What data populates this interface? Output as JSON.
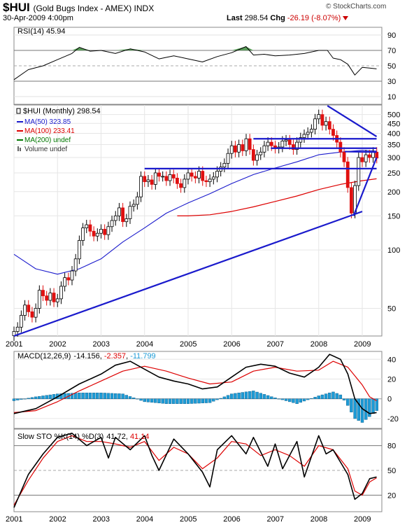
{
  "header": {
    "symbol": "$HUI",
    "name": "(Gold Bugs Index - AMEX) INDX",
    "datetime": "30-Apr-2009 4:00pm",
    "brand": "© StockCharts.com",
    "last_label": "Last",
    "last_value": "298.54",
    "chg_label": "Chg",
    "chg_value": "-26.19 (-8.07%)"
  },
  "colors": {
    "up": "#000000",
    "down": "#e01010",
    "ma50": "#1a1acc",
    "ma100": "#dd0000",
    "ma200": "#007700",
    "trend": "#1a1acc",
    "macd_hist": "#1d9bd6",
    "rsi_fill": "#3f8f3f"
  },
  "chart_data": [
    {
      "type": "line",
      "panel": "rsi",
      "legend": "RSI(14) 45.94",
      "y_ticks": [
        10,
        30,
        50,
        70,
        90
      ],
      "ylim": [
        0,
        100
      ],
      "ref_lines": [
        30,
        70
      ],
      "series": [
        {
          "name": "RSI(14)",
          "x": [
            2001.0,
            2001.33,
            2001.67,
            2002.0,
            2002.33,
            2002.5,
            2002.75,
            2003.0,
            2003.33,
            2003.67,
            2004.0,
            2004.33,
            2004.67,
            2005.0,
            2005.33,
            2005.67,
            2006.0,
            2006.33,
            2006.5,
            2006.75,
            2007.0,
            2007.33,
            2007.67,
            2008.0,
            2008.2,
            2008.33,
            2008.5,
            2008.67,
            2008.83,
            2009.0,
            2009.17,
            2009.33
          ],
          "values": [
            32,
            45,
            50,
            58,
            66,
            74,
            69,
            70,
            66,
            72,
            68,
            59,
            63,
            59,
            55,
            62,
            67,
            75,
            64,
            65,
            63,
            64,
            66,
            70,
            70,
            60,
            58,
            52,
            38,
            48,
            47,
            46
          ]
        }
      ]
    },
    {
      "type": "candlestick",
      "panel": "price",
      "legend": [
        "$HUI (Monthly) 298.54",
        "MA(50) 323.85",
        "MA(100) 233.41",
        "MA(200) undef",
        "Volume undef"
      ],
      "y_scale": "log",
      "y_ticks": [
        50,
        100,
        150,
        200,
        250,
        300,
        350,
        400,
        450,
        500
      ],
      "ylim": [
        36,
        560
      ],
      "x_ticks": [
        "2001",
        "2002",
        "2003",
        "2004",
        "2005",
        "2006",
        "2007",
        "2008",
        "2009"
      ],
      "x_ticks_pos": [
        2001,
        2002,
        2003,
        2004,
        2005,
        2006,
        2007,
        2008,
        2009
      ],
      "close": [
        38,
        40,
        46,
        52,
        48,
        45,
        50,
        62,
        58,
        55,
        60,
        54,
        56,
        65,
        72,
        70,
        78,
        90,
        112,
        130,
        135,
        125,
        118,
        122,
        128,
        120,
        132,
        142,
        150,
        165,
        140,
        145,
        168,
        172,
        188,
        240,
        225,
        230,
        218,
        250,
        240,
        240,
        228,
        245,
        235,
        220,
        210,
        232,
        250,
        240,
        235,
        255,
        228,
        225,
        232,
        238,
        255,
        268,
        280,
        315,
        345,
        320,
        350,
        325,
        375,
        330,
        290,
        310,
        320,
        345,
        360,
        345,
        335,
        340,
        365,
        370,
        350,
        330,
        360,
        380,
        395,
        405,
        420,
        475,
        500,
        440,
        460,
        420,
        390,
        360,
        320,
        285,
        210,
        155,
        215,
        300,
        285,
        310,
        300,
        320,
        298
      ],
      "ma50": {
        "x": [
          2001.0,
          2001.5,
          2002.0,
          2002.5,
          2003.0,
          2003.5,
          2004.0,
          2004.5,
          2005.0,
          2005.5,
          2006.0,
          2006.5,
          2007.0,
          2007.5,
          2008.0,
          2008.5,
          2009.0,
          2009.33
        ],
        "values": [
          95,
          80,
          75,
          80,
          90,
          110,
          130,
          155,
          175,
          195,
          220,
          245,
          265,
          285,
          310,
          320,
          327,
          324
        ]
      },
      "ma100": {
        "x": [
          2004.75,
          2005.0,
          2005.5,
          2006.0,
          2006.5,
          2007.0,
          2007.5,
          2008.0,
          2008.5,
          2009.0,
          2009.33
        ],
        "values": [
          150,
          150,
          152,
          158,
          167,
          178,
          190,
          205,
          218,
          228,
          233
        ]
      },
      "trendlines": [
        {
          "from": [
            2001.0,
            36
          ],
          "to": [
            2009.0,
            158
          ]
        },
        {
          "from": [
            2004.0,
            263
          ],
          "to": [
            2009.33,
            263
          ]
        },
        {
          "from": [
            2006.5,
            375
          ],
          "to": [
            2009.33,
            375
          ]
        },
        {
          "from": [
            2006.9,
            335
          ],
          "to": [
            2009.33,
            335
          ]
        },
        {
          "from": [
            2008.2,
            555
          ],
          "to": [
            2009.33,
            385
          ]
        },
        {
          "from": [
            2008.8,
            150
          ],
          "to": [
            2009.33,
            300
          ]
        },
        {
          "from": [
            2008.6,
            322
          ],
          "to": [
            2009.33,
            320
          ]
        }
      ]
    },
    {
      "type": "line",
      "panel": "macd",
      "legend_prefix": "MACD(12,26,9)",
      "legend_macd": "-14.156",
      "legend_signal": "-2.357",
      "legend_hist": "-11.799",
      "y_ticks": [
        -20,
        0,
        20,
        40
      ],
      "ylim": [
        -30,
        48
      ],
      "series": [
        {
          "name": "MACD",
          "x": [
            2001.0,
            2001.5,
            2002.0,
            2002.5,
            2003.0,
            2003.33,
            2003.67,
            2004.0,
            2004.33,
            2004.67,
            2005.0,
            2005.33,
            2005.67,
            2006.0,
            2006.33,
            2006.67,
            2007.0,
            2007.33,
            2007.67,
            2008.0,
            2008.25,
            2008.5,
            2008.67,
            2008.83,
            2009.0,
            2009.17,
            2009.33
          ],
          "values": [
            -15,
            -10,
            2,
            15,
            25,
            34,
            38,
            30,
            22,
            18,
            15,
            10,
            12,
            22,
            32,
            35,
            33,
            26,
            22,
            32,
            45,
            40,
            25,
            0,
            -10,
            -15,
            -14
          ]
        },
        {
          "name": "Signal",
          "x": [
            2001.0,
            2001.5,
            2002.0,
            2002.5,
            2003.0,
            2003.5,
            2004.0,
            2004.5,
            2005.0,
            2005.5,
            2006.0,
            2006.5,
            2007.0,
            2007.5,
            2008.0,
            2008.33,
            2008.67,
            2009.0,
            2009.17,
            2009.33
          ],
          "values": [
            -14,
            -12,
            -3,
            8,
            18,
            28,
            33,
            28,
            21,
            15,
            17,
            28,
            32,
            28,
            29,
            38,
            32,
            14,
            2,
            -2
          ]
        }
      ],
      "histogram": {
        "x": [
          2001.0,
          2001.5,
          2002.0,
          2002.5,
          2003.0,
          2003.5,
          2004.0,
          2004.5,
          2005.0,
          2005.5,
          2006.0,
          2006.5,
          2007.0,
          2007.5,
          2008.0,
          2008.33,
          2008.5,
          2008.67,
          2008.83,
          2009.0,
          2009.17,
          2009.33
        ],
        "values": [
          -2,
          2,
          5,
          6,
          6,
          5,
          -3,
          -5,
          -5,
          -4,
          5,
          8,
          1,
          -5,
          3,
          7,
          4,
          -7,
          -20,
          -24,
          -18,
          -12
        ]
      }
    },
    {
      "type": "line",
      "panel": "stochastic",
      "legend_prefix": "Slow STO %K(14) %D(3)",
      "legend_k": "41.72",
      "legend_d": "41.14",
      "y_ticks": [
        20,
        50,
        80
      ],
      "ylim": [
        0,
        100
      ],
      "ref_lines": [
        20,
        80
      ],
      "x_ticks": [
        "2001",
        "2002",
        "2003",
        "2004",
        "2005",
        "2006",
        "2007",
        "2008",
        "2009"
      ],
      "x_ticks_pos": [
        2001,
        2002,
        2003,
        2004,
        2005,
        2006,
        2007,
        2008,
        2009
      ],
      "series": [
        {
          "name": "%K",
          "x": [
            2001.0,
            2001.33,
            2001.67,
            2002.0,
            2002.33,
            2002.67,
            2003.0,
            2003.17,
            2003.33,
            2003.67,
            2004.0,
            2004.17,
            2004.33,
            2004.67,
            2005.0,
            2005.33,
            2005.5,
            2005.67,
            2006.0,
            2006.33,
            2006.5,
            2006.83,
            2007.0,
            2007.17,
            2007.5,
            2007.67,
            2008.0,
            2008.17,
            2008.33,
            2008.67,
            2008.83,
            2009.0,
            2009.17,
            2009.33
          ],
          "values": [
            5,
            45,
            70,
            90,
            95,
            80,
            90,
            65,
            90,
            75,
            92,
            68,
            50,
            88,
            70,
            48,
            30,
            75,
            92,
            70,
            90,
            55,
            82,
            52,
            85,
            42,
            92,
            70,
            75,
            45,
            15,
            22,
            40,
            42
          ]
        },
        {
          "name": "%D",
          "x": [
            2001.0,
            2001.33,
            2001.67,
            2002.0,
            2002.33,
            2002.67,
            2003.0,
            2003.33,
            2003.67,
            2004.0,
            2004.33,
            2004.67,
            2005.0,
            2005.33,
            2005.67,
            2006.0,
            2006.33,
            2006.67,
            2007.0,
            2007.33,
            2007.67,
            2008.0,
            2008.33,
            2008.67,
            2008.83,
            2009.0,
            2009.17,
            2009.33
          ],
          "values": [
            8,
            38,
            65,
            85,
            92,
            85,
            85,
            82,
            78,
            85,
            62,
            78,
            70,
            52,
            65,
            85,
            82,
            68,
            75,
            68,
            55,
            80,
            75,
            52,
            25,
            20,
            36,
            41
          ]
        }
      ]
    }
  ]
}
